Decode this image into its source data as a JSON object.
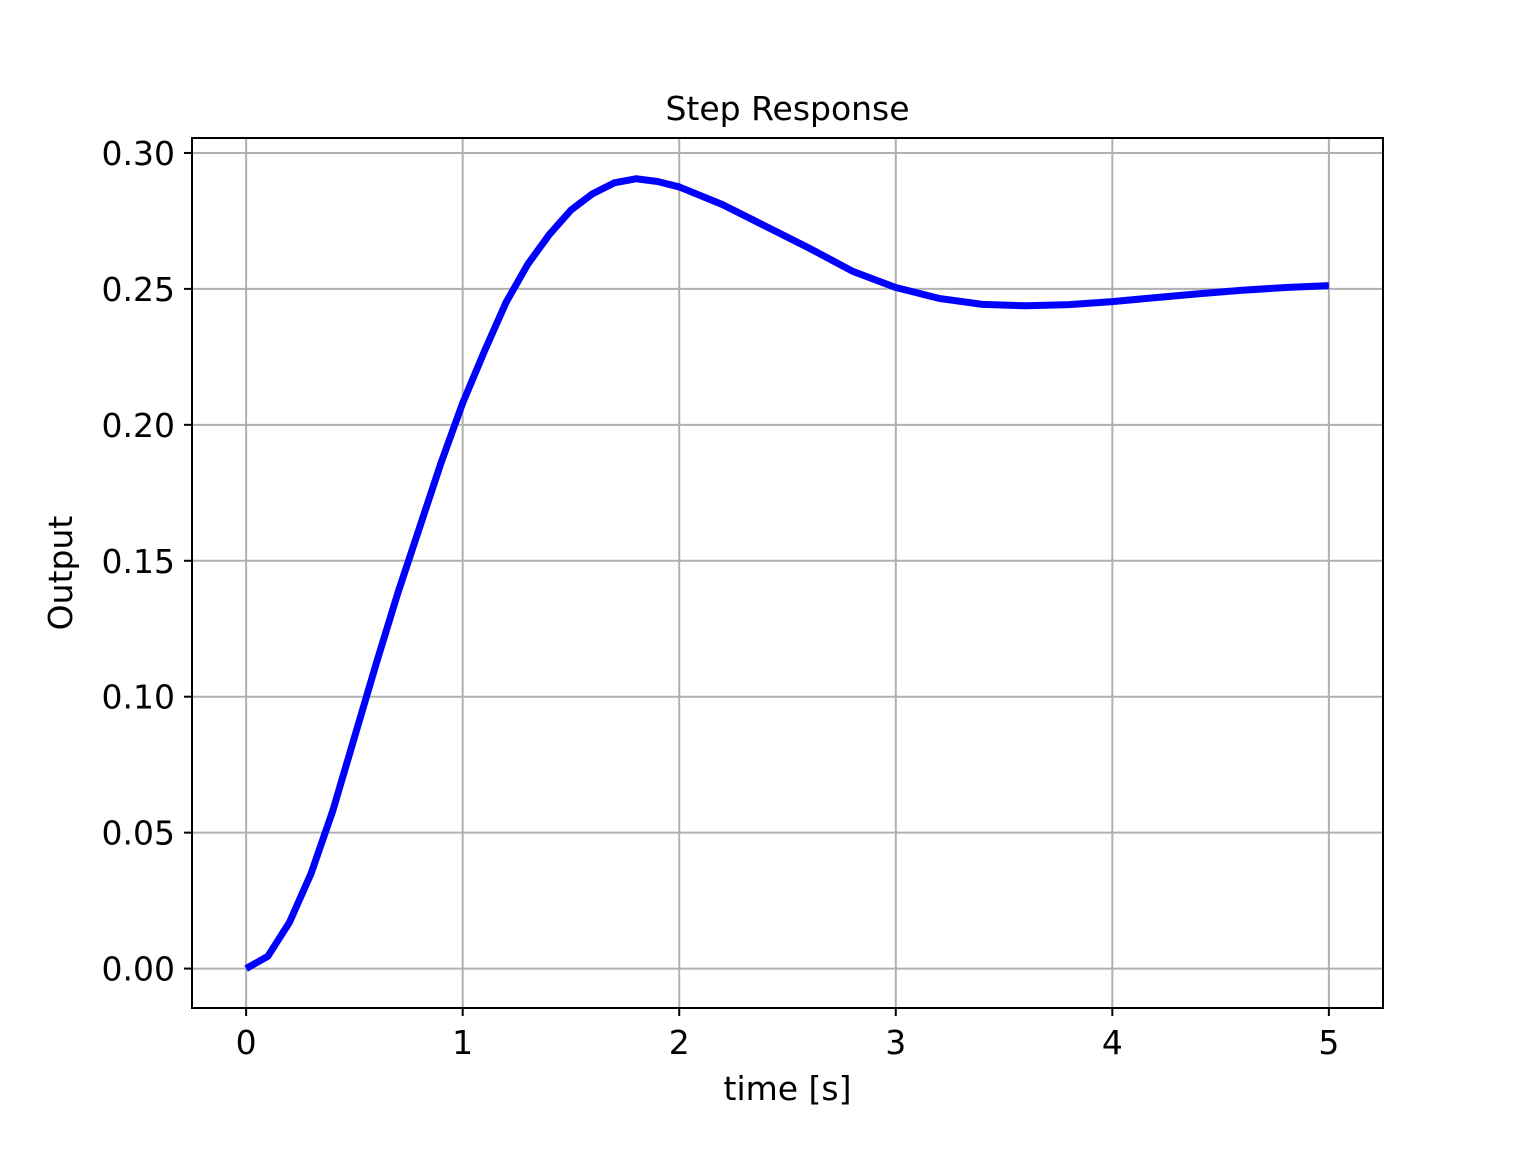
{
  "chart_data": {
    "type": "line",
    "title": "Step Response",
    "xlabel": "time [s]",
    "ylabel": "Output",
    "xlim": [
      -0.25,
      5.25
    ],
    "ylim": [
      -0.0145,
      0.3055
    ],
    "xticks": [
      0,
      1,
      2,
      3,
      4,
      5
    ],
    "xtick_labels": [
      "0",
      "1",
      "2",
      "3",
      "4",
      "5"
    ],
    "yticks": [
      0.0,
      0.05,
      0.1,
      0.15,
      0.2,
      0.25,
      0.3
    ],
    "ytick_labels": [
      "0.00",
      "0.05",
      "0.10",
      "0.15",
      "0.20",
      "0.25",
      "0.30"
    ],
    "grid": true,
    "legend": false,
    "series": [
      {
        "color": "#0000ff",
        "x": [
          0.0,
          0.1,
          0.2,
          0.3,
          0.4,
          0.5,
          0.6,
          0.7,
          0.8,
          0.9,
          1.0,
          1.1,
          1.2,
          1.3,
          1.4,
          1.5,
          1.6,
          1.7,
          1.8,
          1.9,
          2.0,
          2.2,
          2.4,
          2.6,
          2.8,
          3.0,
          3.2,
          3.4,
          3.6,
          3.8,
          4.0,
          4.2,
          4.4,
          4.6,
          4.8,
          5.0
        ],
        "values": [
          0.0,
          0.0045,
          0.017,
          0.035,
          0.058,
          0.085,
          0.112,
          0.138,
          0.162,
          0.186,
          0.208,
          0.227,
          0.245,
          0.259,
          0.27,
          0.279,
          0.285,
          0.289,
          0.2905,
          0.2895,
          0.2875,
          0.281,
          0.273,
          0.265,
          0.2565,
          0.2505,
          0.2465,
          0.2443,
          0.2438,
          0.2442,
          0.2453,
          0.2468,
          0.2482,
          0.2495,
          0.2505,
          0.2512
        ]
      }
    ]
  }
}
